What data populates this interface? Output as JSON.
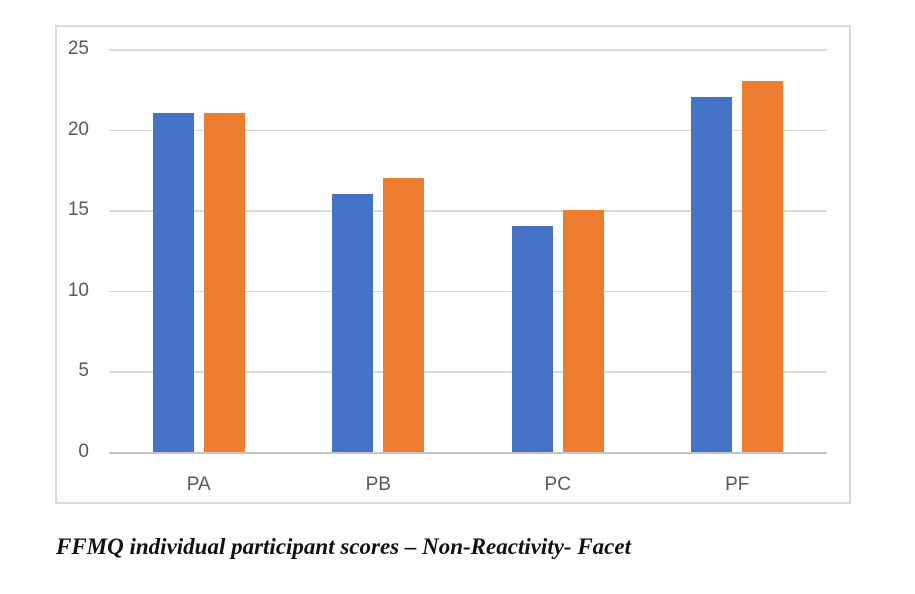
{
  "chart_data": {
    "type": "bar",
    "categories": [
      "PA",
      "PB",
      "PC",
      "PF"
    ],
    "series": [
      {
        "color": "#4472C4",
        "values": [
          21,
          16,
          14,
          22
        ]
      },
      {
        "color": "#ED7D31",
        "values": [
          21,
          17,
          15,
          23
        ]
      }
    ],
    "title": "",
    "xlabel": "",
    "ylabel": "",
    "ylim": [
      0,
      25
    ],
    "yticks": [
      0,
      5,
      10,
      15,
      20,
      25
    ],
    "grid": true,
    "legend_visible": false,
    "gridline_color": "#d9d9d9",
    "axis_line_color": "#c6c6c6",
    "tick_label_color": "#595959"
  },
  "caption": "FFMQ individual participant scores – Non-Reactivity- Facet"
}
